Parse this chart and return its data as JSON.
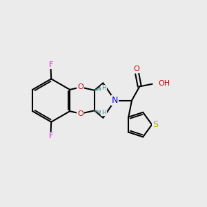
{
  "bg_color": "#ebebeb",
  "colors": {
    "C": "#000000",
    "O": "#cc0000",
    "N": "#0000dd",
    "F": "#dd00dd",
    "S": "#aaaa00",
    "H": "#4a8a8a",
    "bond": "#000000"
  },
  "figsize": [
    3.0,
    3.0
  ],
  "dpi": 100
}
